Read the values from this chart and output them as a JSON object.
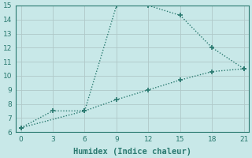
{
  "xlabel": "Humidex (Indice chaleur)",
  "bg_color": "#c8e8e8",
  "grid_color": "#b0c8c8",
  "line1_x": [
    0,
    6,
    9,
    12,
    15,
    18,
    21
  ],
  "line1_y": [
    6.3,
    7.5,
    15.0,
    15.0,
    14.3,
    12.0,
    10.5
  ],
  "line2_x": [
    0,
    3,
    6,
    9,
    12,
    15,
    18,
    21
  ],
  "line2_y": [
    6.3,
    7.5,
    7.5,
    8.3,
    9.0,
    9.7,
    10.3,
    10.5
  ],
  "line_color": "#2a7a70",
  "marker": "+",
  "marker_size": 4,
  "marker_lw": 1.2,
  "xlim": [
    -0.5,
    21.5
  ],
  "ylim": [
    6,
    15
  ],
  "xticks": [
    0,
    3,
    6,
    9,
    12,
    15,
    18,
    21
  ],
  "yticks": [
    6,
    7,
    8,
    9,
    10,
    11,
    12,
    13,
    14,
    15
  ],
  "tick_fontsize": 6.5,
  "label_fontsize": 7.5
}
